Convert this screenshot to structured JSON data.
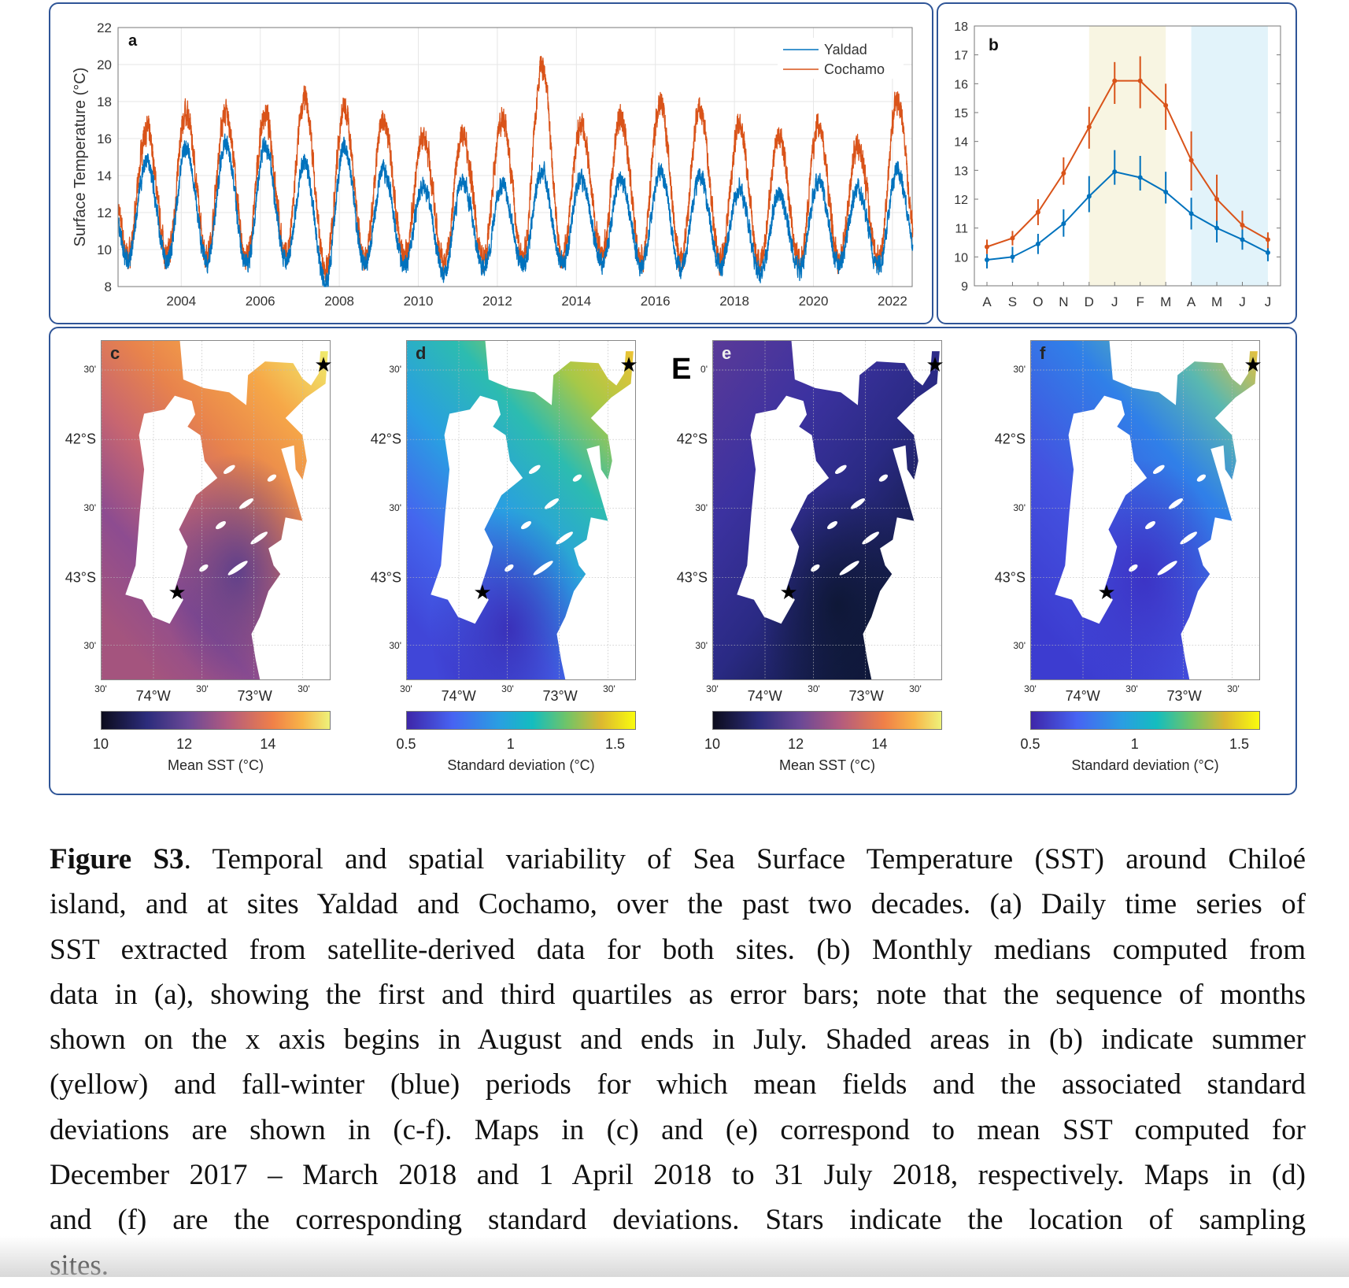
{
  "chart_data": [
    {
      "panel": "a",
      "type": "line",
      "ylabel": "Surface Temperature (°C)",
      "xlabel": "",
      "ylim": [
        8,
        22
      ],
      "xlim": [
        2002.4,
        2022.5
      ],
      "yticks": [
        "8",
        "10",
        "12",
        "14",
        "16",
        "18",
        "20",
        "22"
      ],
      "xticks": [
        "2004",
        "2006",
        "2008",
        "2010",
        "2012",
        "2014",
        "2016",
        "2018",
        "2020",
        "2022"
      ],
      "legend": {
        "placement": "top-right",
        "entries": [
          "Yaldad",
          "Cochamo"
        ]
      },
      "note": "Daily series; approximate summer peak and winter minimum per year",
      "years": [
        2003,
        2004,
        2005,
        2006,
        2007,
        2008,
        2009,
        2010,
        2011,
        2012,
        2013,
        2014,
        2015,
        2016,
        2017,
        2018,
        2019,
        2020,
        2021,
        2022
      ],
      "series": [
        {
          "name": "Yaldad",
          "color": "#0072BD",
          "summer_peak": [
            15.0,
            15.8,
            16.0,
            15.8,
            14.9,
            15.8,
            14.5,
            13.7,
            14.0,
            13.8,
            14.5,
            14.0,
            14.0,
            14.5,
            14.2,
            13.5,
            13.2,
            14.0,
            13.5,
            14.5
          ],
          "winter_min": [
            9.6,
            9.6,
            9.4,
            9.6,
            8.4,
            9.4,
            9.4,
            9.0,
            9.2,
            9.4,
            9.5,
            9.5,
            9.4,
            9.2,
            9.3,
            8.9,
            9.2,
            9.4,
            9.3,
            9.5
          ]
        },
        {
          "name": "Cochamo",
          "color": "#D95319",
          "summer_peak": [
            16.8,
            17.7,
            17.7,
            17.6,
            18.4,
            17.9,
            17.4,
            16.5,
            16.6,
            17.4,
            20.2,
            17.0,
            17.5,
            18.3,
            17.9,
            17.0,
            16.5,
            17.0,
            16.0,
            18.4
          ],
          "winter_min": [
            10.0,
            10.0,
            9.8,
            10.0,
            9.2,
            9.8,
            9.8,
            9.6,
            9.8,
            9.9,
            10.0,
            10.0,
            9.8,
            9.7,
            9.8,
            9.5,
            9.7,
            9.8,
            9.8,
            10.0
          ]
        }
      ]
    },
    {
      "panel": "b",
      "type": "line",
      "categories": [
        "A",
        "S",
        "O",
        "N",
        "D",
        "J",
        "F",
        "M",
        "A",
        "M",
        "J",
        "J"
      ],
      "ylim": [
        9,
        18
      ],
      "yticks": [
        "9",
        "10",
        "11",
        "12",
        "13",
        "14",
        "15",
        "16",
        "17",
        "18"
      ],
      "shaded": [
        {
          "name": "summer",
          "from": "D",
          "to": "M",
          "color": "#f8f5e2"
        },
        {
          "name": "fall-winter",
          "from": "A",
          "to": "J",
          "color": "#e2f3fa"
        }
      ],
      "series": [
        {
          "name": "Cochamo",
          "color": "#D95319",
          "median": [
            10.35,
            10.65,
            11.55,
            12.9,
            14.5,
            16.1,
            16.1,
            15.25,
            13.35,
            12.0,
            11.1,
            10.6
          ],
          "q1": [
            10.1,
            10.4,
            11.1,
            12.5,
            13.75,
            15.3,
            15.15,
            14.4,
            12.3,
            11.15,
            10.75,
            10.2
          ],
          "q3": [
            10.6,
            10.9,
            12.0,
            13.45,
            15.2,
            16.75,
            16.95,
            16.0,
            14.35,
            12.85,
            11.6,
            10.85
          ]
        },
        {
          "name": "Yaldad",
          "color": "#0072BD",
          "median": [
            9.9,
            10.0,
            10.45,
            11.15,
            12.1,
            12.95,
            12.75,
            12.25,
            11.5,
            11.0,
            10.6,
            10.15
          ],
          "q1": [
            9.6,
            9.8,
            10.1,
            10.7,
            11.55,
            12.5,
            12.3,
            11.85,
            10.95,
            10.5,
            10.25,
            9.85
          ],
          "q3": [
            10.1,
            10.35,
            10.8,
            11.65,
            12.8,
            13.7,
            13.5,
            12.95,
            12.05,
            11.25,
            10.95,
            10.3
          ]
        }
      ]
    }
  ],
  "panels": {
    "a_label": "a",
    "b_label": "b",
    "big_letter": "E"
  },
  "maps": [
    {
      "id": "c",
      "label": "c",
      "colormap": "magma",
      "cbar_ticks": [
        "10",
        "12",
        "14"
      ],
      "cbar_values": [
        10,
        12,
        14
      ],
      "cbar_range": [
        10,
        15.5
      ],
      "cbar_title": "Mean SST (°C)",
      "lat_labels": [
        "30'",
        "42°S",
        "30'",
        "43°S",
        "30'"
      ],
      "lon_labels": [
        "30'",
        "74°W",
        "30'",
        "73°W",
        "30'"
      ]
    },
    {
      "id": "d",
      "label": "d",
      "colormap": "parula",
      "cbar_ticks": [
        "0.5",
        "1",
        "1.5"
      ],
      "cbar_values": [
        0.5,
        1,
        1.5
      ],
      "cbar_range": [
        0.5,
        1.6
      ],
      "cbar_title": "Standard deviation (°C)",
      "lat_labels": [
        "30'",
        "42°S",
        "30'",
        "43°S",
        "30'"
      ],
      "lon_labels": [
        "30'",
        "74°W",
        "30'",
        "73°W",
        "30'"
      ]
    },
    {
      "id": "e",
      "label": "e",
      "colormap": "magma",
      "cbar_ticks": [
        "10",
        "12",
        "14"
      ],
      "cbar_values": [
        10,
        12,
        14
      ],
      "cbar_range": [
        10,
        15.5
      ],
      "cbar_title": "Mean SST (°C)",
      "lat_labels": [
        "0'",
        "42°S",
        "30'",
        "43°S",
        "30'"
      ],
      "lon_labels": [
        "30'",
        "74°W",
        "30'",
        "73°W",
        "30'"
      ]
    },
    {
      "id": "f",
      "label": "f",
      "colormap": "parula",
      "cbar_ticks": [
        "0.5",
        "1",
        "1.5"
      ],
      "cbar_values": [
        0.5,
        1,
        1.5
      ],
      "cbar_range": [
        0.5,
        1.6
      ],
      "cbar_title": "Standard deviation (°C)",
      "lat_labels": [
        "30'",
        "42°S",
        "30'",
        "43°S",
        "30'"
      ],
      "lon_labels": [
        "30'",
        "74°W",
        "30'",
        "73°W",
        "30'"
      ]
    }
  ],
  "caption": {
    "bold": "Figure S3",
    "lines": [
      ". Temporal and spatial variability of Sea Surface Temperature (SST) around Chiloé",
      "island, and at sites Yaldad and Cochamo, over the past two decades. (a) Daily time series of",
      "SST extracted from satellite-derived data for both sites. (b) Monthly medians computed from",
      "data in (a), showing the first and third quartiles as error bars; note that the sequence of months",
      "shown on the x axis begins in August and ends in July. Shaded areas in (b) indicate summer",
      "(yellow) and fall-winter (blue) periods for which mean fields and the associated standard",
      "deviations are shown in (c-f). Maps in (c) and (e) correspond to mean SST computed for",
      "December 2017 – March 2018 and 1 April 2018 to 31 July 2018, respectively. Maps in (d)",
      "and (f) are the corresponding standard deviations. Stars indicate the location of sampling",
      "sites."
    ]
  }
}
